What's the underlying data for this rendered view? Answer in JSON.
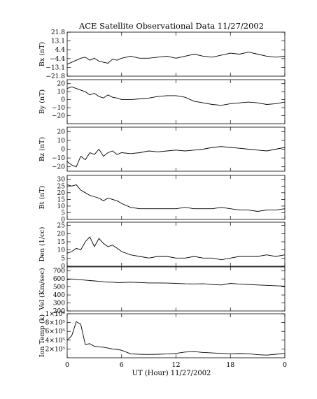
{
  "chart_data": {
    "type": "line",
    "title": "ACE Satellite Observational Data   11/27/2002",
    "xlabel": "UT (Hour)  11/27/2002",
    "xticks": [
      "0",
      "6",
      "12",
      "18",
      "0"
    ],
    "xlim": [
      0,
      24
    ],
    "grid": false,
    "panels": [
      {
        "ylabel": "Bx (nT)",
        "ylim": [
          -21.8,
          21.8
        ],
        "yticks": [
          -21.8,
          -13.1,
          -4.4,
          4.4,
          13.1,
          21.8
        ],
        "ytick_labels": [
          "−21.8",
          "−13.1",
          "−4.4",
          "4.4",
          "13.1",
          "21.8"
        ],
        "series": [
          {
            "x": [
              0,
              0.5,
              1,
              1.5,
              2,
              2.5,
              3,
              3.5,
              4,
              4.5,
              5,
              5.5,
              6,
              7,
              8,
              9,
              10,
              11,
              12,
              13,
              14,
              15,
              16,
              17,
              18,
              19,
              20,
              21,
              22,
              23,
              24
            ],
            "y": [
              -10,
              -8,
              -6,
              -4,
              -3,
              -6,
              -4,
              -7,
              -8,
              -9,
              -5,
              -6,
              -4,
              -2,
              -4,
              -4,
              -3,
              -2,
              -4,
              -2,
              0,
              -2,
              -3,
              -1,
              1,
              0,
              2,
              0,
              -2,
              -3,
              -2
            ]
          }
        ]
      },
      {
        "ylabel": "By (nT)",
        "ylim": [
          -30,
          25
        ],
        "yticks": [
          -20,
          -10,
          0,
          10,
          20
        ],
        "ytick_labels": [
          "−20",
          "−10",
          "0",
          "10",
          "20"
        ],
        "series": [
          {
            "x": [
              0,
              0.5,
              1,
              1.5,
              2,
              2.5,
              3,
              3.5,
              4,
              4.5,
              5,
              5.5,
              6,
              7,
              8,
              9,
              10,
              11,
              12,
              13,
              14,
              15,
              16,
              17,
              18,
              19,
              20,
              21,
              22,
              23,
              24
            ],
            "y": [
              14,
              16,
              14,
              12,
              10,
              6,
              8,
              4,
              2,
              6,
              3,
              2,
              0,
              0,
              1,
              2,
              4,
              5,
              5,
              3,
              -2,
              -4,
              -6,
              -7,
              -5,
              -4,
              -3,
              -4,
              -6,
              -5,
              -3
            ]
          }
        ]
      },
      {
        "ylabel": "Bz (nT)",
        "ylim": [
          -25,
          25
        ],
        "yticks": [
          -20,
          -10,
          0,
          10,
          20
        ],
        "ytick_labels": [
          "−20",
          "−10",
          "0",
          "10",
          "20"
        ],
        "series": [
          {
            "x": [
              0,
              0.5,
              1,
              1.5,
              2,
              2.5,
              3,
              3.5,
              4,
              4.5,
              5,
              5.5,
              6,
              7,
              8,
              9,
              10,
              11,
              12,
              13,
              14,
              15,
              16,
              17,
              18,
              19,
              20,
              21,
              22,
              23,
              24
            ],
            "y": [
              -14,
              -18,
              -20,
              -8,
              -12,
              -4,
              -6,
              0,
              -8,
              -4,
              -2,
              -6,
              -4,
              -5,
              -4,
              -2,
              -3,
              -2,
              -1,
              -2,
              -1,
              0,
              2,
              3,
              2,
              1,
              0,
              -1,
              -2,
              0,
              2
            ]
          }
        ]
      },
      {
        "ylabel": "Bt (nT)",
        "ylim": [
          0,
          33
        ],
        "yticks": [
          0,
          5,
          10,
          15,
          20,
          25,
          30
        ],
        "ytick_labels": [
          "0",
          "5",
          "10",
          "15",
          "20",
          "25",
          "30"
        ],
        "series": [
          {
            "x": [
              0,
              0.5,
              1,
              1.5,
              2,
              2.5,
              3,
              3.5,
              4,
              4.5,
              5,
              5.5,
              6,
              7,
              8,
              9,
              10,
              11,
              12,
              13,
              14,
              15,
              16,
              17,
              18,
              19,
              20,
              21,
              22,
              23,
              24
            ],
            "y": [
              26,
              25,
              26,
              22,
              20,
              18,
              17,
              16,
              14,
              16,
              15,
              14,
              12,
              9,
              8,
              8,
              8,
              8,
              8,
              9,
              8,
              8,
              8,
              9,
              8,
              7,
              7,
              6,
              7,
              7,
              8
            ]
          }
        ]
      },
      {
        "ylabel": "Den (1/cc)",
        "ylim": [
          0,
          27
        ],
        "yticks": [
          0,
          5,
          10,
          15,
          20,
          25
        ],
        "ytick_labels": [
          "0",
          "5",
          "10",
          "15",
          "20",
          "25"
        ],
        "series": [
          {
            "x": [
              0,
              0.5,
              1,
              1.5,
              2,
              2.5,
              3,
              3.5,
              4,
              4.5,
              5,
              5.5,
              6,
              7,
              8,
              9,
              10,
              11,
              12,
              13,
              14,
              15,
              16,
              17,
              18,
              19,
              20,
              21,
              22,
              23,
              24
            ],
            "y": [
              8,
              9,
              11,
              10,
              15,
              18,
              12,
              17,
              14,
              12,
              13,
              11,
              9,
              7,
              6,
              5,
              6,
              6,
              5,
              5,
              6,
              5,
              5,
              4,
              5,
              6,
              6,
              6,
              7,
              6,
              7
            ]
          }
        ]
      },
      {
        "ylabel": "Vel (Km/sec)",
        "ylim": [
          200,
          750
        ],
        "yticks": [
          200,
          300,
          400,
          500,
          600,
          700
        ],
        "ytick_labels": [
          "200",
          "300",
          "400",
          "500",
          "600",
          "700"
        ],
        "series": [
          {
            "x": [
              0,
              0.5,
              1,
              1.5,
              2,
              2.5,
              3,
              3.5,
              4,
              4.5,
              5,
              5.5,
              6,
              7,
              8,
              9,
              10,
              11,
              12,
              13,
              14,
              15,
              16,
              17,
              18,
              19,
              20,
              21,
              22,
              23,
              24
            ],
            "y": [
              590,
              600,
              595,
              590,
              585,
              580,
              575,
              570,
              565,
              560,
              560,
              555,
              555,
              560,
              555,
              550,
              550,
              548,
              545,
              540,
              538,
              540,
              530,
              525,
              545,
              535,
              530,
              525,
              520,
              515,
              510
            ]
          }
        ]
      },
      {
        "ylabel": "Ion Temp (k)",
        "ylim": [
          0,
          1000000
        ],
        "yticks": [
          200000,
          400000,
          600000,
          800000,
          1000000
        ],
        "ytick_labels": [
          "2×10⁵",
          "4×10⁵",
          "6×10⁵",
          "8×10⁵",
          "1×10⁶"
        ],
        "series": [
          {
            "x": [
              0,
              0.5,
              1,
              1.5,
              2,
              2.5,
              3,
              3.5,
              4,
              4.5,
              5,
              5.5,
              6,
              7,
              8,
              9,
              10,
              11,
              12,
              13,
              14,
              15,
              16,
              17,
              18,
              19,
              20,
              21,
              22,
              23,
              24
            ],
            "y": [
              400000,
              500000,
              820000,
              760000,
              300000,
              320000,
              260000,
              250000,
              240000,
              220000,
              200000,
              190000,
              170000,
              90000,
              80000,
              75000,
              80000,
              85000,
              100000,
              130000,
              140000,
              120000,
              110000,
              100000,
              90000,
              95000,
              90000,
              70000,
              60000,
              80000,
              100000
            ]
          }
        ]
      }
    ]
  }
}
